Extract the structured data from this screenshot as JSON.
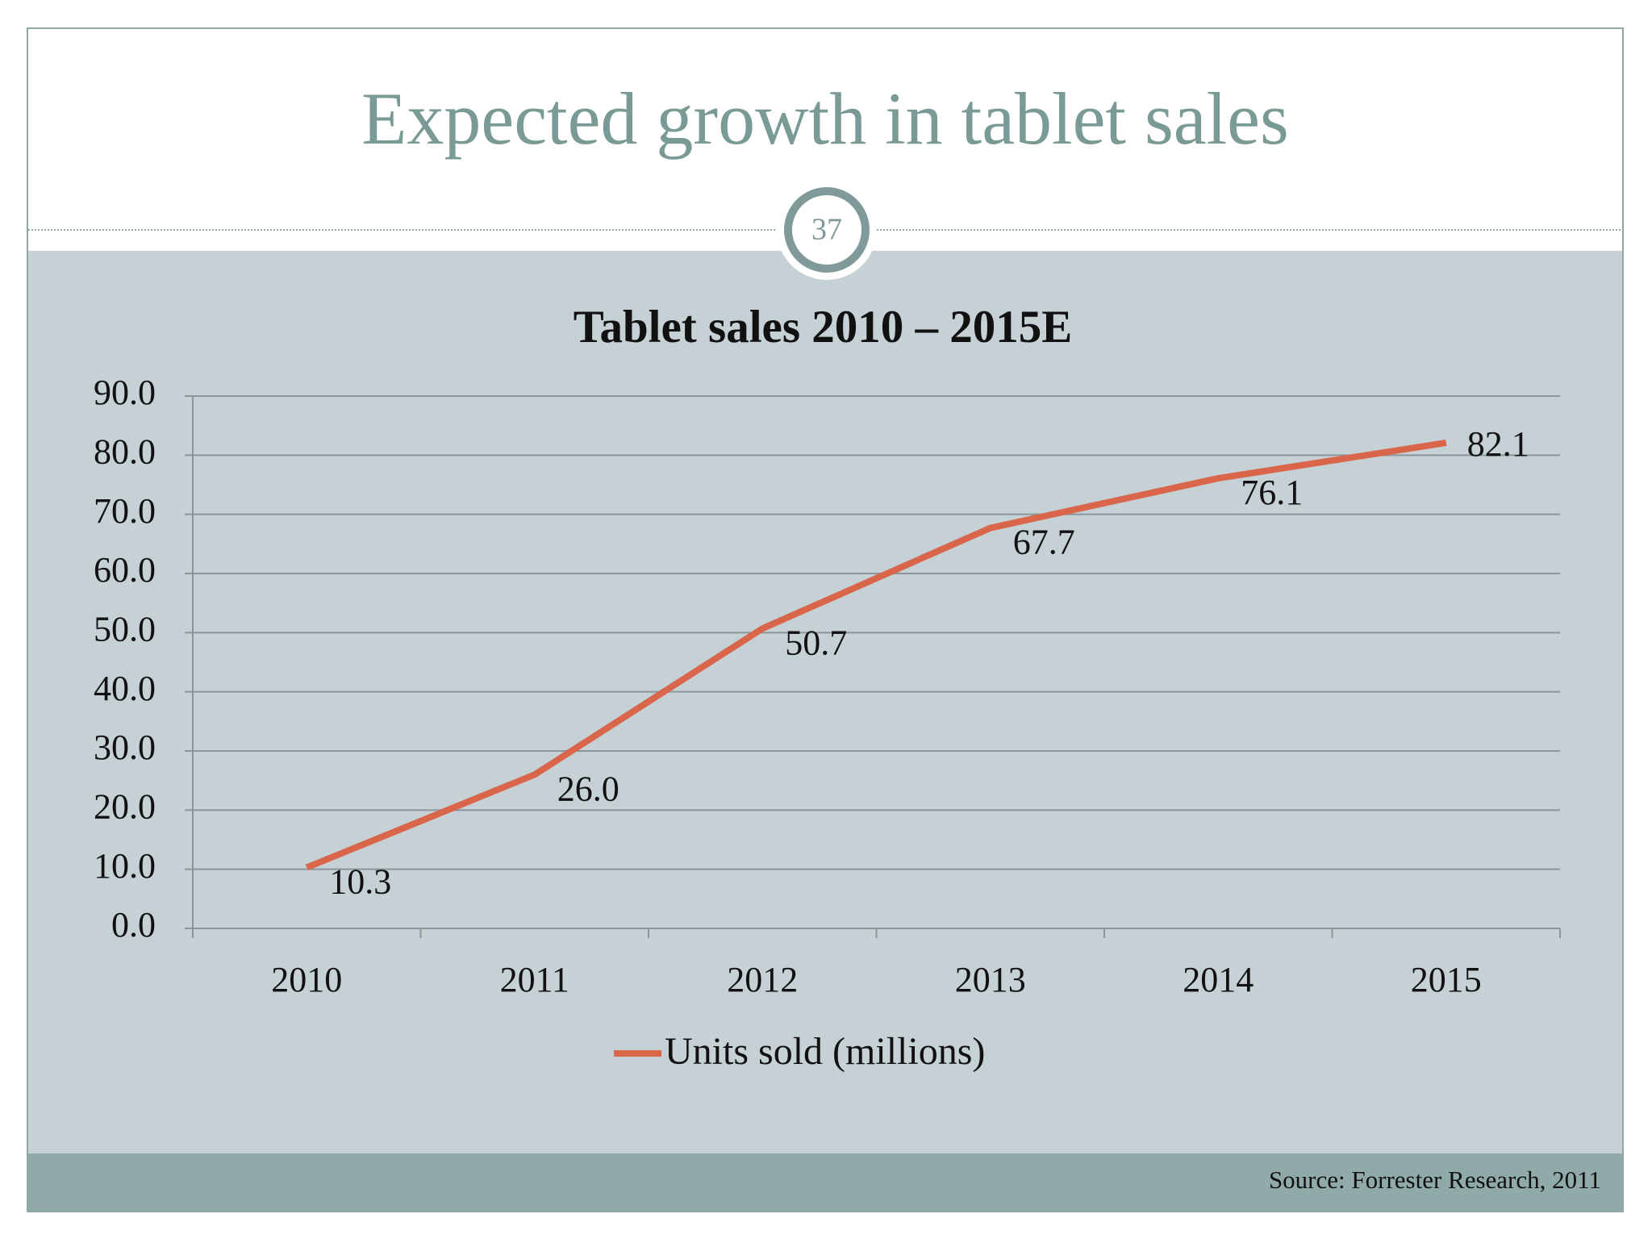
{
  "slide_title": "Expected growth in tablet sales",
  "slide_number": 37,
  "source": "Source: Forrester Research, 2011",
  "chart_data": {
    "type": "line",
    "title": "Tablet sales 2010 – 2015E",
    "categories": [
      "2010",
      "2011",
      "2012",
      "2013",
      "2014",
      "2015"
    ],
    "series": [
      {
        "name": "Units sold (millions)",
        "color": "#d9664a",
        "values": [
          10.3,
          26.0,
          50.7,
          67.7,
          76.1,
          82.1
        ],
        "value_labels": [
          "10.3",
          "26.0",
          "50.7",
          "67.7",
          "76.1",
          "82.1"
        ]
      }
    ],
    "ylim": [
      0,
      90
    ],
    "yticks": [
      {
        "value": 0,
        "label": "0.0"
      },
      {
        "value": 10,
        "label": "10.0"
      },
      {
        "value": 20,
        "label": "20.0"
      },
      {
        "value": 30,
        "label": "30.0"
      },
      {
        "value": 40,
        "label": "40.0"
      },
      {
        "value": 50,
        "label": "50.0"
      },
      {
        "value": 60,
        "label": "60.0"
      },
      {
        "value": 70,
        "label": "70.0"
      },
      {
        "value": 80,
        "label": "80.0"
      },
      {
        "value": 90,
        "label": "90.0"
      }
    ],
    "grid": true,
    "legend": "bottom"
  }
}
